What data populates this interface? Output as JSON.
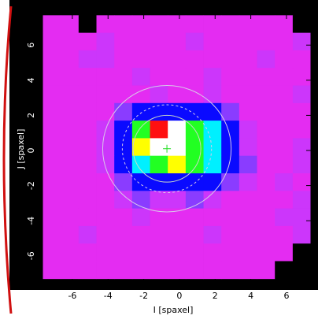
{
  "chart_data": {
    "type": "heatmap",
    "x_label": "I [spaxel]",
    "y_label": "J [spaxel]",
    "xlim": [
      -8.07,
      7.37
    ],
    "ylim": [
      -7.58,
      7.76
    ],
    "xticks": [
      -6,
      -4,
      -2,
      0,
      2,
      4,
      6
    ],
    "yticks": [
      -6,
      -4,
      -2,
      0,
      2,
      4,
      6
    ],
    "x": [
      -7.15,
      -6.15,
      -5.15,
      -4.15,
      -3.15,
      -2.15,
      -1.15,
      -0.15,
      0.85,
      1.85,
      2.85,
      3.85,
      4.85,
      5.85,
      6.85
    ],
    "y": [
      7.2,
      6.2,
      5.2,
      4.2,
      3.2,
      2.2,
      1.2,
      0.2,
      -0.8,
      -1.8,
      -2.8,
      -3.8,
      -4.8,
      -5.8,
      -6.8
    ],
    "colorscale": [
      "#e42cf2",
      "#cc36fb",
      "#8a3cff",
      "#0a0aff",
      "#00f0ff",
      "#22ff22",
      "#ffff00",
      "#ff1010",
      "#ffffff"
    ],
    "missing_color": "#000000",
    "z": [
      [
        0,
        0,
        null,
        0,
        0,
        0,
        0,
        0,
        0,
        0,
        0,
        0,
        0,
        0,
        null
      ],
      [
        0,
        0,
        0,
        1,
        0,
        0,
        0,
        0,
        1,
        0,
        0,
        0,
        0,
        0,
        1
      ],
      [
        0,
        0,
        1,
        1,
        0,
        0,
        0,
        0,
        0,
        0,
        0,
        0,
        1,
        0,
        0
      ],
      [
        0,
        0,
        0,
        0,
        0,
        1,
        0,
        0,
        0,
        1,
        0,
        0,
        0,
        0,
        0
      ],
      [
        0,
        0,
        0,
        0,
        0,
        0,
        1,
        0,
        0,
        1,
        0,
        0,
        0,
        0,
        1
      ],
      [
        0,
        0,
        0,
        0,
        2,
        3,
        3,
        3,
        3,
        3,
        2,
        0,
        0,
        0,
        0
      ],
      [
        0,
        0,
        0,
        1,
        3,
        5,
        7,
        8,
        5,
        4,
        3,
        1,
        0,
        0,
        0
      ],
      [
        0,
        0,
        0,
        1,
        3,
        6,
        8,
        8,
        5,
        4,
        3,
        1,
        0,
        0,
        1
      ],
      [
        0,
        0,
        0,
        1,
        3,
        4,
        5,
        6,
        5,
        4,
        3,
        2,
        0,
        0,
        1
      ],
      [
        0,
        0,
        0,
        0,
        2,
        3,
        3,
        3,
        3,
        3,
        2,
        1,
        0,
        1,
        0
      ],
      [
        0,
        0,
        0,
        0,
        1,
        2,
        1,
        1,
        2,
        1,
        0,
        0,
        0,
        0,
        1
      ],
      [
        0,
        0,
        0,
        0,
        0,
        1,
        0,
        0,
        0,
        0,
        0,
        0,
        0,
        1,
        1
      ],
      [
        0,
        0,
        1,
        0,
        0,
        0,
        0,
        0,
        0,
        1,
        0,
        0,
        0,
        0,
        1
      ],
      [
        0,
        0,
        0,
        0,
        0,
        0,
        0,
        0,
        0,
        0,
        0,
        0,
        0,
        0,
        null
      ],
      [
        0,
        0,
        0,
        0,
        0,
        0,
        0,
        0,
        0,
        0,
        0,
        0,
        0,
        null,
        null
      ]
    ],
    "marker": {
      "x": -0.7,
      "y": 0.1,
      "color": "#22dd22"
    },
    "circles": [
      {
        "r": 3.6,
        "dashed": false,
        "color": "#d8c8e8"
      },
      {
        "r": 2.5,
        "dashed": true,
        "color": "#d8c8e8"
      },
      {
        "r": 1.9,
        "dashed": false,
        "color": "#c8d8c8"
      }
    ]
  }
}
